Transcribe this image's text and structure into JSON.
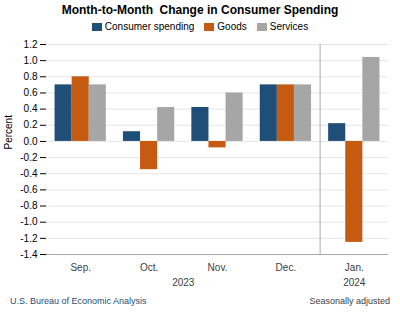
{
  "chart_data": {
    "type": "bar",
    "title": "Month-to-Month  Change in Consumer Spending",
    "ylabel": "Percent",
    "categories": [
      "Sep.",
      "Oct.",
      "Nov.",
      "Dec.",
      "Jan."
    ],
    "series": [
      {
        "name": "Consumer spending",
        "color": "#1f4e79",
        "values": [
          0.7,
          0.12,
          0.42,
          0.7,
          0.22
        ]
      },
      {
        "name": "Goods",
        "color": "#c55a11",
        "values": [
          0.8,
          -0.35,
          -0.08,
          0.7,
          -1.25
        ]
      },
      {
        "name": "Services",
        "color": "#a6a6a6",
        "values": [
          0.7,
          0.42,
          0.6,
          0.7,
          1.04
        ]
      }
    ],
    "ylim": [
      -1.4,
      1.2
    ],
    "yticks": [
      -1.4,
      -1.2,
      {
        "value": -1.0,
        "label": "-1.0"
      },
      -0.8,
      -0.6,
      -0.4,
      -0.2,
      {
        "value": 0.0,
        "label": "0.0"
      },
      0.2,
      0.4,
      0.6,
      0.8,
      {
        "value": 1.0,
        "label": "1.0"
      },
      1.2
    ],
    "grid": true,
    "legend": "top",
    "annotations": [
      {
        "text": "2023",
        "categories": [
          "Sep.",
          "Oct.",
          "Nov.",
          "Dec."
        ]
      },
      {
        "text": "2024",
        "categories": [
          "Jan."
        ]
      }
    ],
    "footer_left": "U.S. Bureau of Economic Analysis",
    "footer_right": "Seasonally adjusted"
  }
}
